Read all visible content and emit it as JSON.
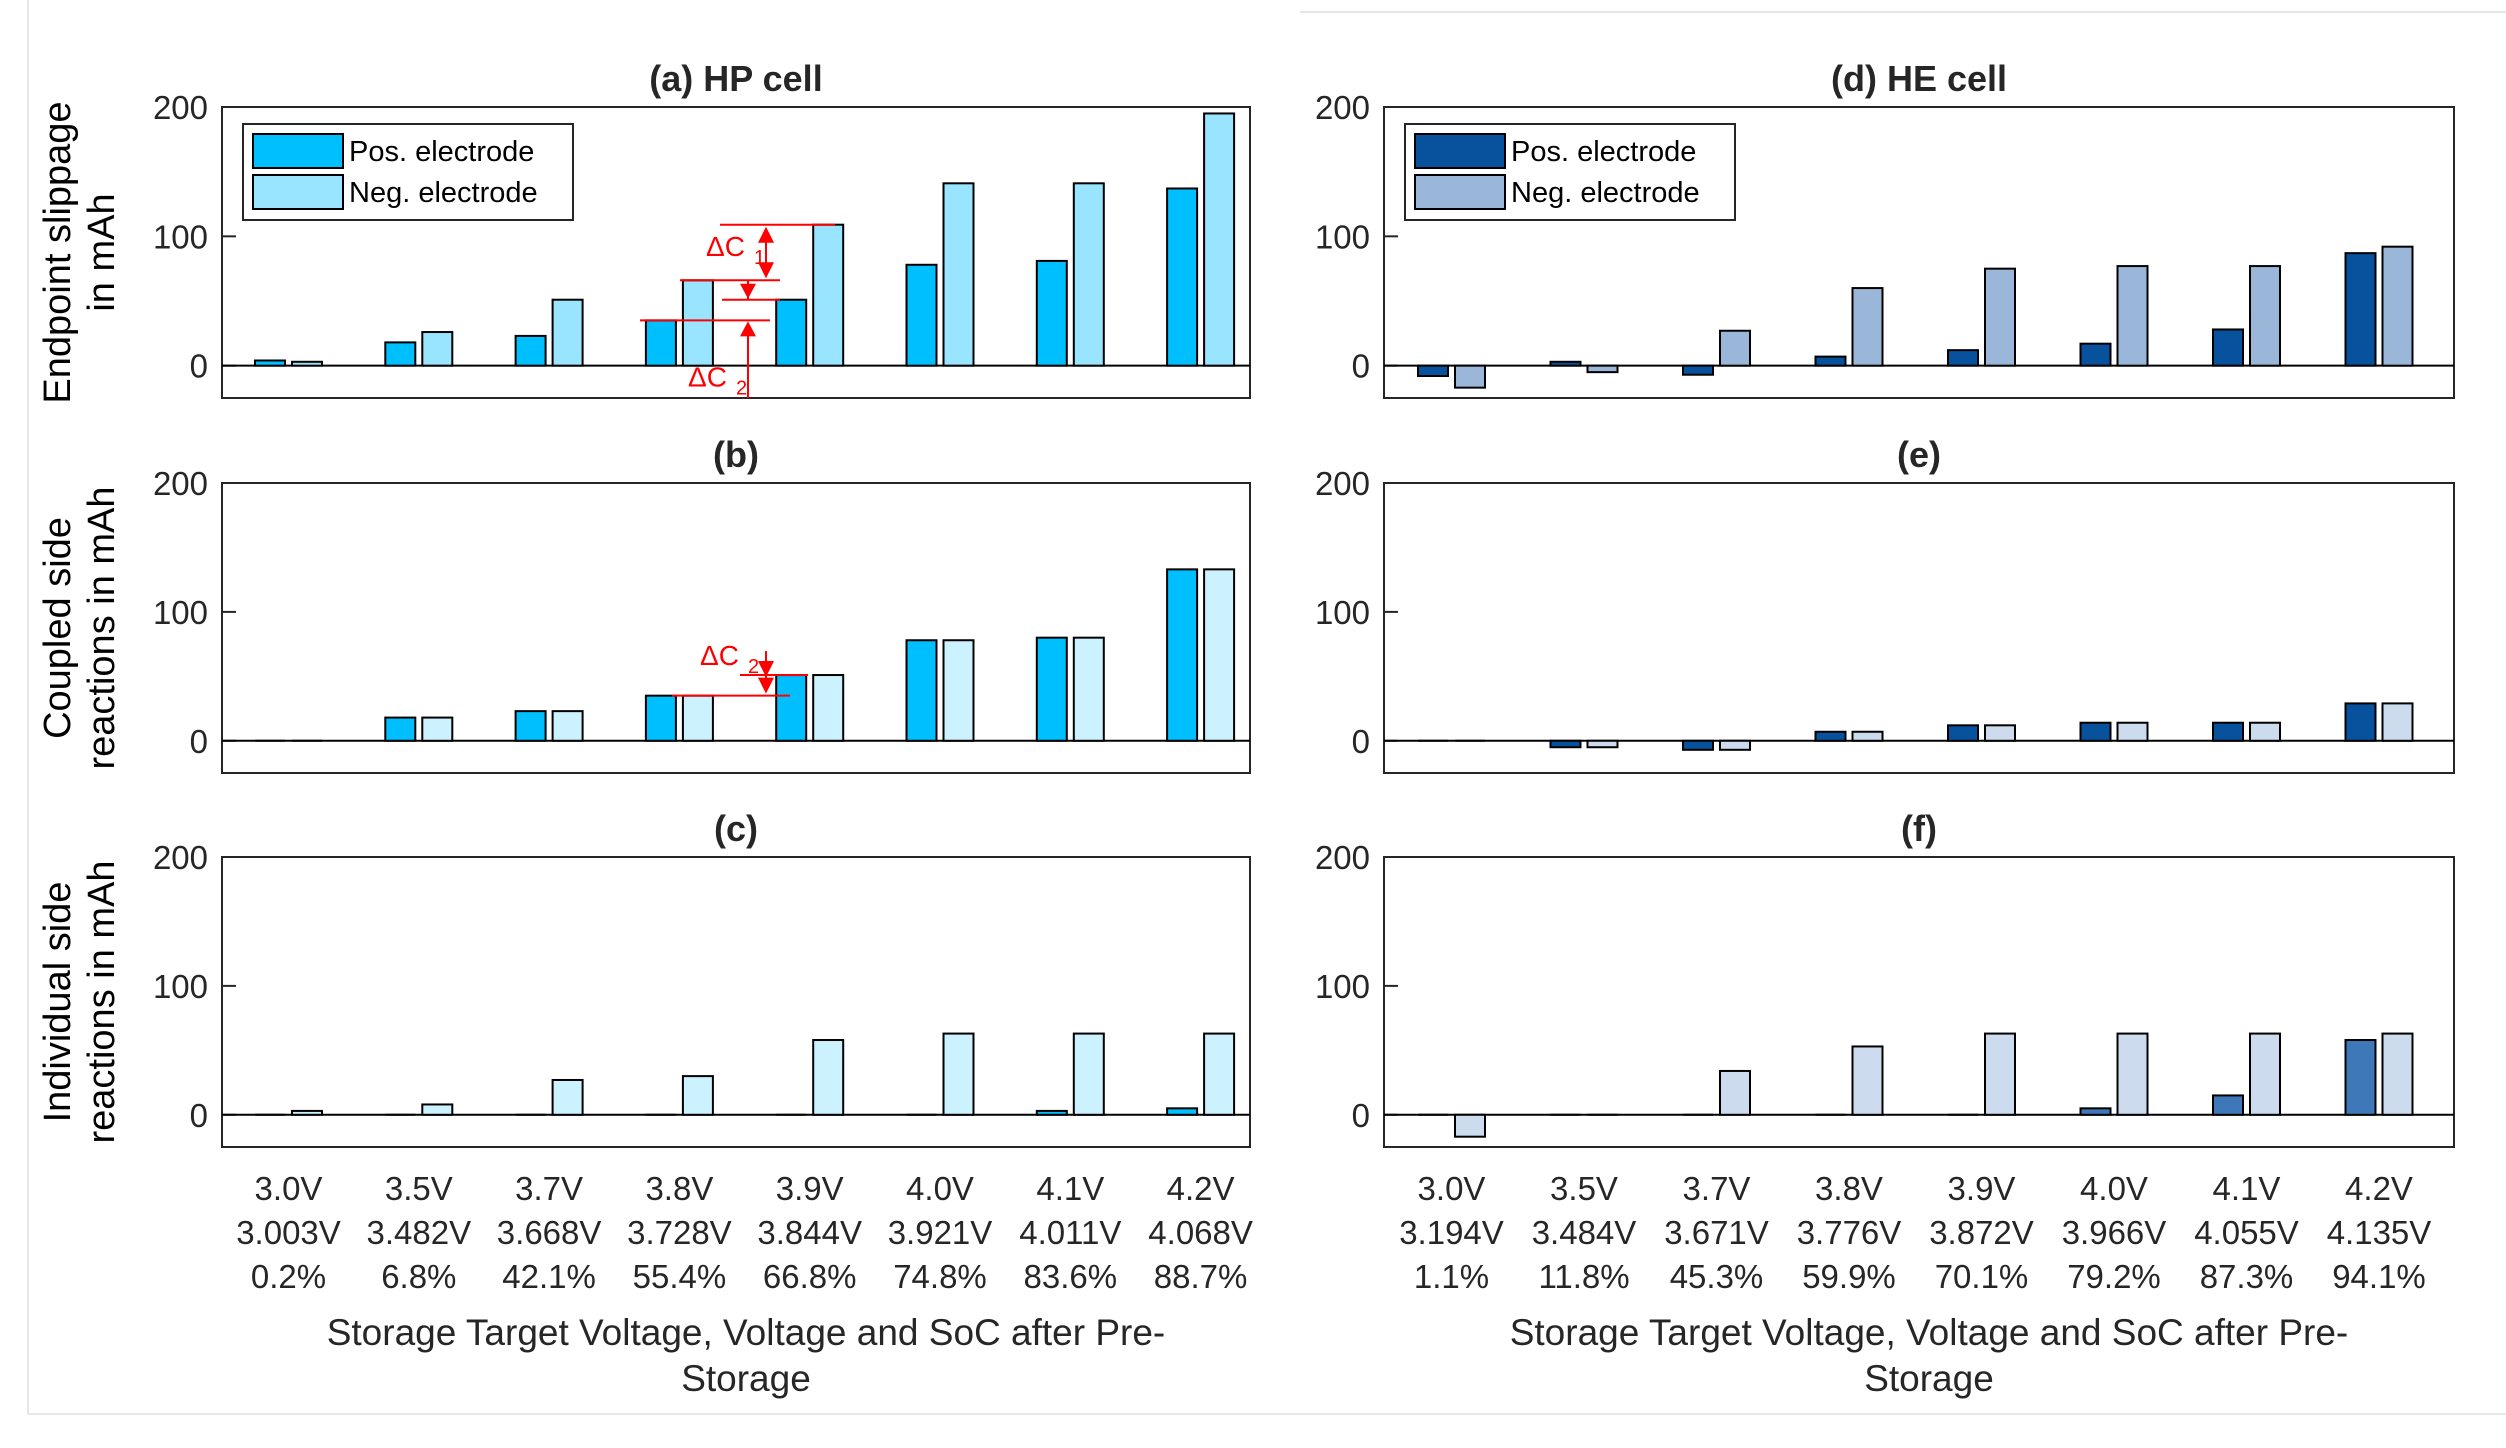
{
  "figure": {
    "xaxis_label_lines": [
      "Storage Target Voltage, Voltage and SoC after Pre-",
      "Storage"
    ],
    "row_ylabels": [
      [
        "Endpoint slippage",
        "in mAh"
      ],
      [
        "Coupled side",
        "reactions in mAh"
      ],
      [
        "Individual side",
        "reactions in mAh"
      ]
    ],
    "colors": {
      "hp_pos": "#00BFFF",
      "hp_neg": "#99E5FF",
      "hp_neg_light": "#CCF2FF",
      "he_pos": "#08519C",
      "he_neg": "#9AB6D9",
      "he_pos_mid": "#3E78B8",
      "he_neg_light": "#CCDCEE",
      "annotation": "#FF0000"
    }
  },
  "chart_data": [
    {
      "id": "a",
      "type": "bar",
      "title": "(a) HP cell",
      "cell": "HP",
      "row": 0,
      "ylim": [
        -25,
        200
      ],
      "yticks": [
        0,
        100,
        200
      ],
      "categories": [
        "3.0V",
        "3.5V",
        "3.7V",
        "3.8V",
        "3.9V",
        "4.0V",
        "4.1V",
        "4.2V"
      ],
      "x_tick_lines": [
        [
          "3.0V",
          "3.5V",
          "3.7V",
          "3.8V",
          "3.9V",
          "4.0V",
          "4.1V",
          "4.2V"
        ],
        [
          "3.003V",
          "3.482V",
          "3.668V",
          "3.728V",
          "3.844V",
          "3.921V",
          "4.011V",
          "4.068V"
        ],
        [
          "0.2%",
          "6.8%",
          "42.1%",
          "55.4%",
          "66.8%",
          "74.8%",
          "83.6%",
          "88.7%"
        ]
      ],
      "legend": [
        "Pos. electrode",
        "Neg. electrode"
      ],
      "series": [
        {
          "name": "Pos. electrode",
          "values": [
            4,
            18,
            23,
            35,
            51,
            78,
            81,
            137
          ]
        },
        {
          "name": "Neg. electrode",
          "values": [
            3,
            26,
            51,
            66,
            109,
            141,
            141,
            195
          ]
        }
      ],
      "annotations": [
        {
          "text": "ΔC",
          "sub": "1",
          "from": 66,
          "to": 109
        },
        {
          "text": "ΔC",
          "sub": "2",
          "from": -25,
          "to": 35
        }
      ]
    },
    {
      "id": "b",
      "type": "bar",
      "title": "(b)",
      "cell": "HP",
      "row": 1,
      "ylim": [
        -25,
        200
      ],
      "yticks": [
        0,
        100,
        200
      ],
      "categories": [
        "3.0V",
        "3.5V",
        "3.7V",
        "3.8V",
        "3.9V",
        "4.0V",
        "4.1V",
        "4.2V"
      ],
      "series": [
        {
          "name": "Pos. electrode",
          "values": [
            0,
            18,
            23,
            35,
            51,
            78,
            80,
            133
          ]
        },
        {
          "name": "Neg. electrode",
          "values": [
            0,
            18,
            23,
            35,
            51,
            78,
            80,
            133
          ]
        }
      ],
      "annotations": [
        {
          "text": "ΔC",
          "sub": "2",
          "from": 35,
          "to": 51
        }
      ]
    },
    {
      "id": "c",
      "type": "bar",
      "title": "(c)",
      "cell": "HP",
      "row": 2,
      "ylim": [
        -25,
        200
      ],
      "yticks": [
        0,
        100,
        200
      ],
      "categories": [
        "3.0V",
        "3.5V",
        "3.7V",
        "3.8V",
        "3.9V",
        "4.0V",
        "4.1V",
        "4.2V"
      ],
      "series": [
        {
          "name": "Pos. electrode",
          "values": [
            0,
            0,
            0,
            0,
            0,
            0,
            3,
            5
          ]
        },
        {
          "name": "Neg. electrode",
          "values": [
            3,
            8,
            27,
            30,
            58,
            63,
            63,
            63
          ]
        }
      ]
    },
    {
      "id": "d",
      "type": "bar",
      "title": "(d) HE cell",
      "cell": "HE",
      "row": 0,
      "ylim": [
        -25,
        200
      ],
      "yticks": [
        0,
        100,
        200
      ],
      "categories": [
        "3.0V",
        "3.5V",
        "3.7V",
        "3.8V",
        "3.9V",
        "4.0V",
        "4.1V",
        "4.2V"
      ],
      "x_tick_lines": [
        [
          "3.0V",
          "3.5V",
          "3.7V",
          "3.8V",
          "3.9V",
          "4.0V",
          "4.1V",
          "4.2V"
        ],
        [
          "3.194V",
          "3.484V",
          "3.671V",
          "3.776V",
          "3.872V",
          "3.966V",
          "4.055V",
          "4.135V"
        ],
        [
          "1.1%",
          "11.8%",
          "45.3%",
          "59.9%",
          "70.1%",
          "79.2%",
          "87.3%",
          "94.1%"
        ]
      ],
      "legend": [
        "Pos. electrode",
        "Neg. electrode"
      ],
      "series": [
        {
          "name": "Pos. electrode",
          "values": [
            -8,
            3,
            -7,
            7,
            12,
            17,
            28,
            87
          ]
        },
        {
          "name": "Neg. electrode",
          "values": [
            -17,
            -5,
            27,
            60,
            75,
            77,
            77,
            92
          ]
        }
      ]
    },
    {
      "id": "e",
      "type": "bar",
      "title": "(e)",
      "cell": "HE",
      "row": 1,
      "ylim": [
        -25,
        200
      ],
      "yticks": [
        0,
        100,
        200
      ],
      "categories": [
        "3.0V",
        "3.5V",
        "3.7V",
        "3.8V",
        "3.9V",
        "4.0V",
        "4.1V",
        "4.2V"
      ],
      "series": [
        {
          "name": "Pos. electrode",
          "values": [
            0,
            -5,
            -7,
            7,
            12,
            14,
            14,
            29
          ]
        },
        {
          "name": "Neg. electrode",
          "values": [
            0,
            -5,
            -7,
            7,
            12,
            14,
            14,
            29
          ]
        }
      ]
    },
    {
      "id": "f",
      "type": "bar",
      "title": "(f)",
      "cell": "HE",
      "row": 2,
      "ylim": [
        -25,
        200
      ],
      "yticks": [
        0,
        100,
        200
      ],
      "categories": [
        "3.0V",
        "3.5V",
        "3.7V",
        "3.8V",
        "3.9V",
        "4.0V",
        "4.1V",
        "4.2V"
      ],
      "series": [
        {
          "name": "Pos. electrode",
          "values": [
            0,
            0,
            0,
            0,
            0,
            5,
            15,
            58
          ]
        },
        {
          "name": "Neg. electrode",
          "values": [
            -17,
            0,
            34,
            53,
            63,
            63,
            63,
            63
          ]
        }
      ]
    }
  ]
}
